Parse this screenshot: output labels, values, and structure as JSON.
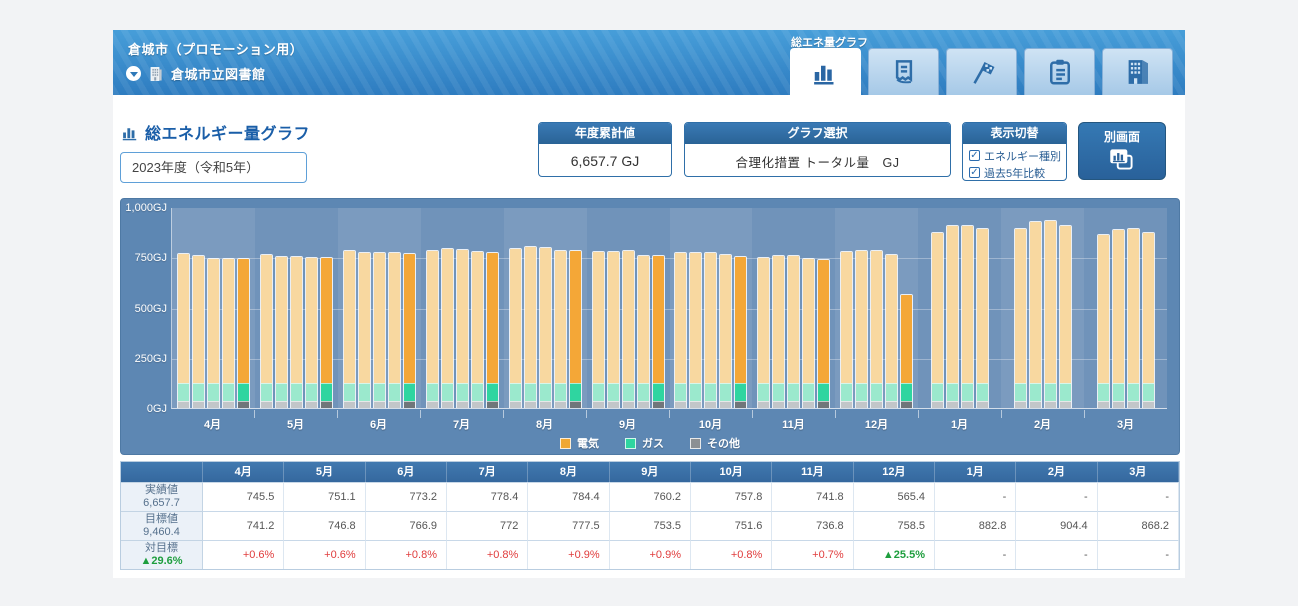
{
  "header": {
    "app_title": "倉城市（プロモーション用）",
    "facility": "倉城市立図書館",
    "facility_icons": [
      "chevron-down-circle-icon",
      "building-icon"
    ],
    "nav": {
      "active_tab_label": "総エネ量グラフ",
      "tabs": [
        {
          "id": "energy-graph",
          "icon": "bar-chart-icon",
          "active": true
        },
        {
          "id": "report",
          "icon": "receipt-icon",
          "active": false
        },
        {
          "id": "milestone",
          "icon": "checkered-flag-icon",
          "active": false
        },
        {
          "id": "checklist",
          "icon": "clipboard-icon",
          "active": false
        },
        {
          "id": "facility",
          "icon": "building-icon",
          "active": false
        }
      ]
    }
  },
  "toolbar": {
    "page_title": "総エネルギー量グラフ",
    "page_title_icon": "bar-chart-icon",
    "fiscal_year_select": "2023年度（令和5年）",
    "annual_total": {
      "header": "年度累計値",
      "value": "6,657.7 GJ"
    },
    "graph_select": {
      "header": "グラフ選択",
      "value": "合理化措置 トータル量　GJ"
    },
    "display_toggle": {
      "header": "表示切替",
      "options": [
        {
          "label": "エネルギー種別",
          "checked": true
        },
        {
          "label": "過去5年比較",
          "checked": true
        }
      ]
    },
    "separate_window": {
      "label": "別画面",
      "icon": "chart-window-icon"
    }
  },
  "chart_data": {
    "type": "bar",
    "title": "総エネルギー量グラフ",
    "unit": "GJ",
    "ylim": [
      0,
      1000
    ],
    "yticks": [
      "1,000GJ",
      "750GJ",
      "500GJ",
      "250GJ",
      "0GJ"
    ],
    "categories": [
      "4月",
      "5月",
      "6月",
      "7月",
      "8月",
      "9月",
      "10月",
      "11月",
      "12月",
      "1月",
      "2月",
      "3月"
    ],
    "legend": [
      {
        "label": "電気",
        "color": "#F0A732"
      },
      {
        "label": "ガス",
        "color": "#2FD5A0"
      },
      {
        "label": "その他",
        "color": "#8C9093"
      }
    ],
    "bars_per_month": "5 bars = past 4 fiscal years (light) + current year (dark); current-year bar absent for 1月-3月",
    "groups": [
      {
        "month": "4月",
        "totals": [
          770,
          760,
          746,
          748,
          745.5
        ]
      },
      {
        "month": "5月",
        "totals": [
          764,
          755,
          754,
          750,
          751.1
        ]
      },
      {
        "month": "6月",
        "totals": [
          787,
          775,
          774,
          776,
          773.2
        ]
      },
      {
        "month": "7月",
        "totals": [
          788,
          798,
          793,
          780,
          778.4
        ]
      },
      {
        "month": "8月",
        "totals": [
          797,
          806,
          802,
          786,
          784.4
        ]
      },
      {
        "month": "9月",
        "totals": [
          780,
          783,
          786,
          760,
          760.2
        ]
      },
      {
        "month": "10月",
        "totals": [
          774,
          775,
          776,
          764,
          757.8
        ]
      },
      {
        "month": "11月",
        "totals": [
          753,
          760,
          760,
          747,
          741.8
        ]
      },
      {
        "month": "12月",
        "totals": [
          783,
          788,
          786,
          766,
          565.4
        ]
      },
      {
        "month": "1月",
        "totals": [
          878,
          910,
          909,
          894,
          null
        ]
      },
      {
        "month": "2月",
        "totals": [
          897,
          930,
          936,
          911,
          null
        ]
      },
      {
        "month": "3月",
        "totals": [
          866,
          893,
          894,
          877,
          null
        ]
      }
    ],
    "stack_estimate_GJ": {
      "その他": 34,
      "ガス": 88,
      "電気": "total - 122"
    },
    "grid": true,
    "legend_position": "bottom"
  },
  "table": {
    "months": [
      "4月",
      "5月",
      "6月",
      "7月",
      "8月",
      "9月",
      "10月",
      "11月",
      "12月",
      "1月",
      "2月",
      "3月"
    ],
    "rows": [
      {
        "label": "実績値",
        "total": "6,657.7",
        "kind": "number",
        "values": [
          "745.5",
          "751.1",
          "773.2",
          "778.4",
          "784.4",
          "760.2",
          "757.8",
          "741.8",
          "565.4",
          "-",
          "-",
          "-"
        ]
      },
      {
        "label": "目標値",
        "total": "9,460.4",
        "kind": "number",
        "values": [
          "741.2",
          "746.8",
          "766.9",
          "772",
          "777.5",
          "753.5",
          "751.6",
          "736.8",
          "758.5",
          "882.8",
          "904.4",
          "868.2"
        ]
      },
      {
        "label": "対目標",
        "total": "▲29.6%",
        "kind": "percent",
        "values": [
          "+0.6%",
          "+0.6%",
          "+0.8%",
          "+0.8%",
          "+0.9%",
          "+0.9%",
          "+0.8%",
          "+0.7%",
          "▲25.5%",
          "-",
          "-",
          "-"
        ]
      }
    ]
  },
  "colors": {
    "accent_blue": "#2E6DA8",
    "panel_header_blue": "#2F6FA8",
    "chart_bg": "#5D87B3",
    "plot_bg": "#7093BA",
    "positive_green": "#1E9E3E",
    "negative_red": "#E03C3C",
    "bar_prev": {
      "elec": "#F8D8A0",
      "gas": "#9BE9CD",
      "other": "#C2C6C9"
    },
    "bar_current": {
      "elec": "#F4A737",
      "gas": "#2FD5A0",
      "other": "#70767A"
    }
  }
}
